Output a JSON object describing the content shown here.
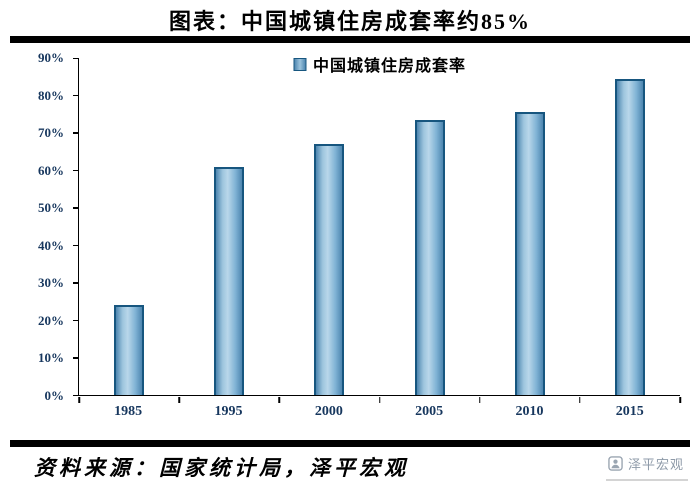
{
  "title": "图表：中国城镇住房成套率约85%",
  "chart_data": {
    "type": "bar",
    "title": "图表：中国城镇住房成套率约85%",
    "legend": "中国城镇住房成套率",
    "legend_position": "top-center",
    "categories": [
      "1985",
      "1995",
      "2000",
      "2005",
      "2010",
      "2015"
    ],
    "values": [
      24,
      61,
      67,
      73.5,
      75.5,
      84.5
    ],
    "xlabel": "",
    "ylabel": "",
    "ylim": [
      0,
      90
    ],
    "ytick_step": 10,
    "ytick_suffix": "%",
    "grid": false,
    "bar_fill": "#7FB2D4",
    "bar_border": "#17567F"
  },
  "footer": {
    "source": "资料来源：国家统计局，泽平宏观",
    "brand": "泽平宏观"
  },
  "colors": {
    "axis_label": "#17375E",
    "divider": "#000000",
    "brand_text": "#8E9AA8"
  }
}
